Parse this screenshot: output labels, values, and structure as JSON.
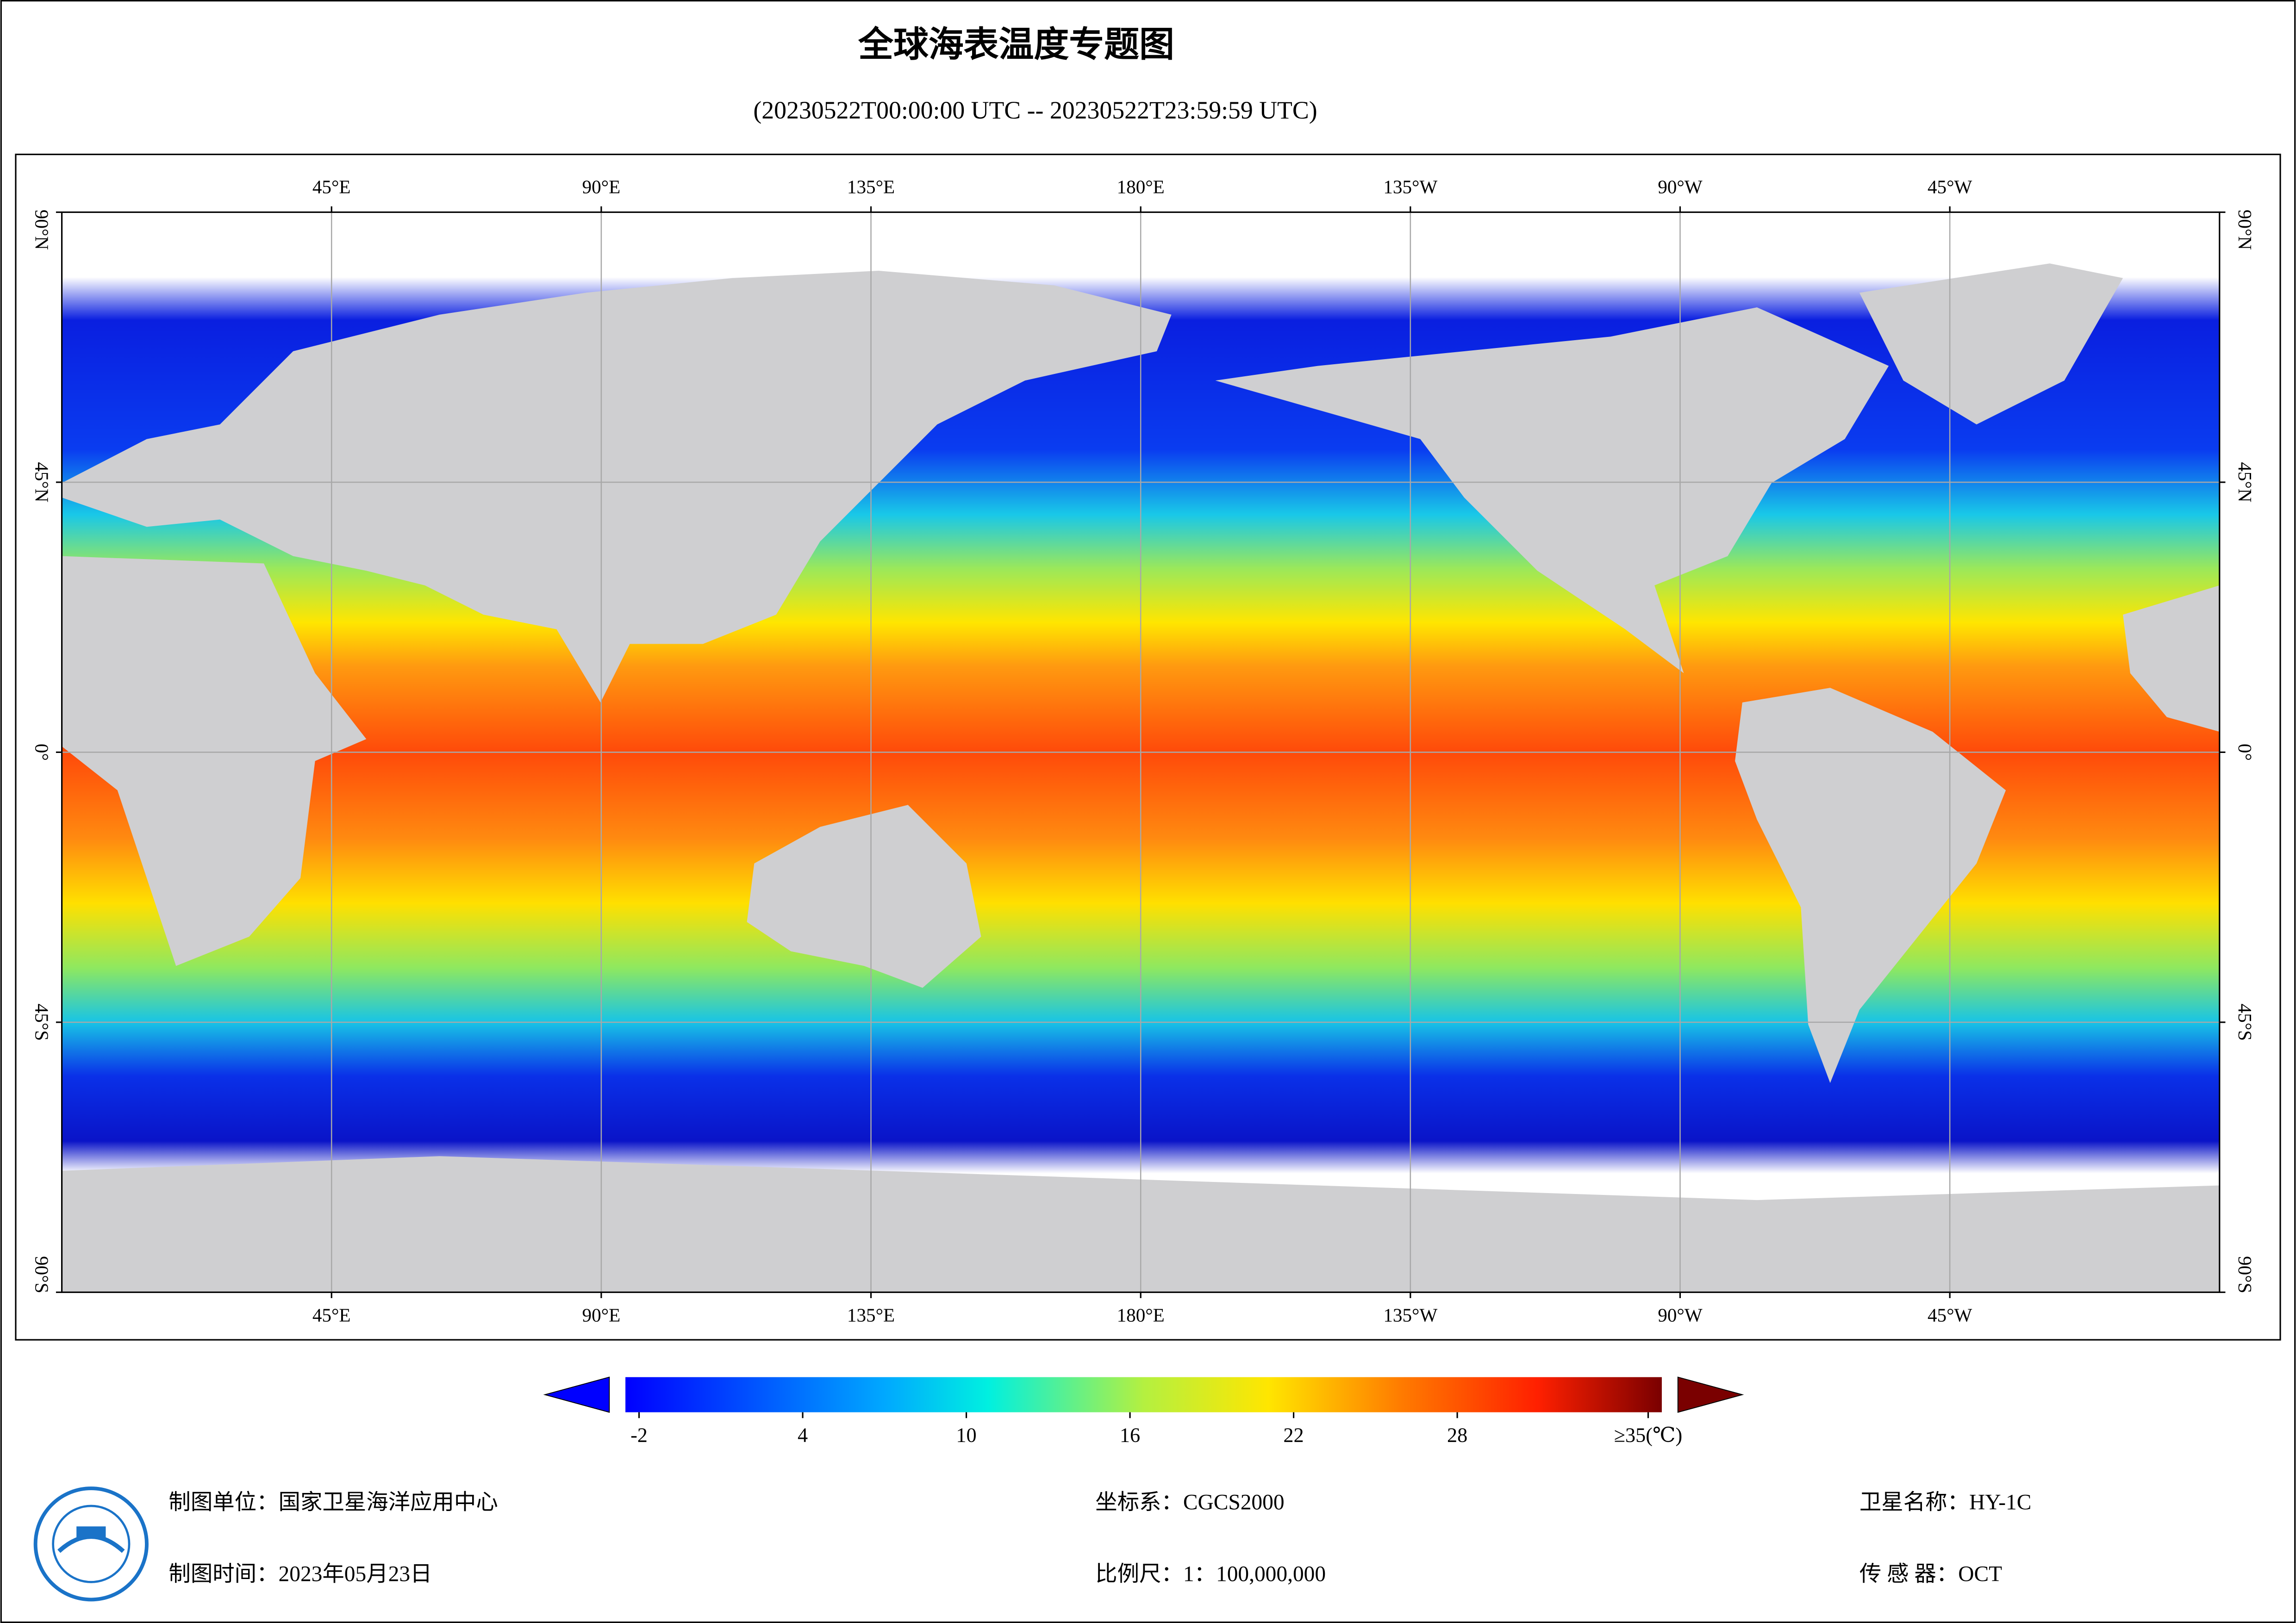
{
  "header": {
    "title": "全球海表温度专题图",
    "subtitle": "(20230522T00:00:00 UTC -- 20230522T23:59:59 UTC)"
  },
  "map": {
    "xlim": [
      0,
      360
    ],
    "ylim": [
      -90,
      90
    ],
    "lon_ticks": [
      {
        "value": 45,
        "label": "45°E"
      },
      {
        "value": 90,
        "label": "90°E"
      },
      {
        "value": 135,
        "label": "135°E"
      },
      {
        "value": 180,
        "label": "180°E"
      },
      {
        "value": 225,
        "label": "135°W"
      },
      {
        "value": 270,
        "label": "90°W"
      },
      {
        "value": 315,
        "label": "45°W"
      }
    ],
    "lat_ticks": [
      {
        "value": 90,
        "label": "90°N"
      },
      {
        "value": 45,
        "label": "45°N"
      },
      {
        "value": 0,
        "label": "0°"
      },
      {
        "value": -45,
        "label": "45°S"
      },
      {
        "value": -90,
        "label": "90°S"
      }
    ],
    "grid": true
  },
  "colorbar": {
    "lim": [
      -2.5,
      35.5
    ],
    "ticks": [
      -2,
      4,
      10,
      16,
      22,
      28,
      {
        "value": 35,
        "label": "≥35(℃)"
      }
    ]
  },
  "footer": {
    "unit": "制图单位：国家卫星海洋应用中心",
    "crs": "坐标系：CGCS2000",
    "satellite": "卫星名称：HY-1C",
    "date": "制图时间：2023年05月23日",
    "scale": "比例尺：1：100,000,000",
    "sensor": "传 感 器：OCT"
  }
}
